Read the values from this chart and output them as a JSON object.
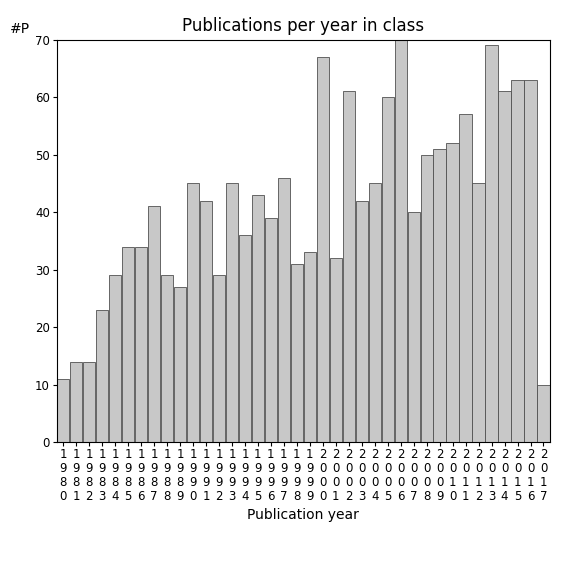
{
  "title": "Publications per year in class",
  "xlabel": "Publication year",
  "ylabel": "#P",
  "bar_color": "#c8c8c8",
  "bar_edgecolor": "#505050",
  "ylim": [
    0,
    70
  ],
  "yticks": [
    0,
    10,
    20,
    30,
    40,
    50,
    60,
    70
  ],
  "years": [
    "1980",
    "1981",
    "1982",
    "1983",
    "1984",
    "1985",
    "1986",
    "1987",
    "1988",
    "1989",
    "1990",
    "1991",
    "1992",
    "1993",
    "1994",
    "1995",
    "1996",
    "1997",
    "1998",
    "1999",
    "2000",
    "2001",
    "2002",
    "2003",
    "2004",
    "2005",
    "2006",
    "2007",
    "2008",
    "2009",
    "2010",
    "2011",
    "2012",
    "2013",
    "2014",
    "2015",
    "2016",
    "2017"
  ],
  "values": [
    11,
    14,
    14,
    23,
    29,
    34,
    34,
    41,
    29,
    27,
    45,
    42,
    29,
    45,
    36,
    43,
    39,
    46,
    31,
    33,
    67,
    32,
    61,
    42,
    45,
    60,
    70,
    40,
    50,
    51,
    52,
    57,
    45,
    69,
    61,
    63,
    63,
    10
  ],
  "background_color": "#ffffff",
  "title_fontsize": 12,
  "label_fontsize": 10,
  "tick_fontsize": 8.5
}
